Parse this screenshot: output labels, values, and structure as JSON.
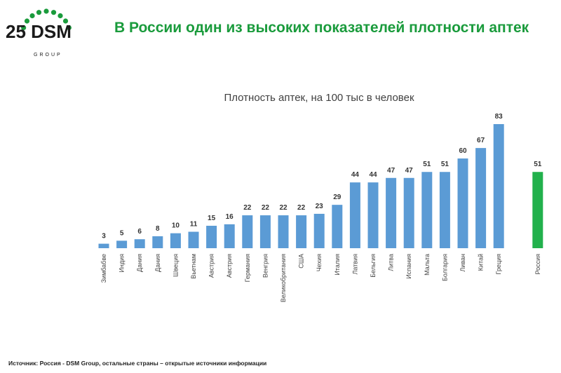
{
  "logo": {
    "text": "25 DSM",
    "subtext": "GROUP",
    "color": "#1a9b3c"
  },
  "headline": "В России один из высоких показателей плотности аптек",
  "source": "Источник: Россия - DSM Group, остальные страны – открытые источники информации",
  "colors": {
    "bar": "#5b9bd5",
    "highlight": "#22b14c",
    "headline": "#1a9b3c"
  },
  "chart_data": {
    "type": "bar",
    "title": "Плотность аптек, на 100 тыс в человек",
    "categories": [
      "Зимбабве",
      "Индия",
      "Дания",
      "Дания",
      "Швеция",
      "Вьетнам",
      "Австрия",
      "Австрия",
      "Германия",
      "Венгрия",
      "Великобритания",
      "США",
      "Чехия",
      "Италия",
      "Латвия",
      "Бельгия",
      "Литва",
      "Испания",
      "Мальта",
      "Болгария",
      "Ливан",
      "Китай",
      "Греция",
      "Россия"
    ],
    "values": [
      3,
      5,
      6,
      8,
      10,
      11,
      15,
      16,
      22,
      22,
      22,
      22,
      23,
      29,
      44,
      44,
      47,
      47,
      51,
      51,
      60,
      67,
      83,
      51
    ],
    "highlight_category": "Россия",
    "ylim": [
      0,
      83
    ],
    "grid": false,
    "xlabel": "",
    "ylabel": ""
  }
}
